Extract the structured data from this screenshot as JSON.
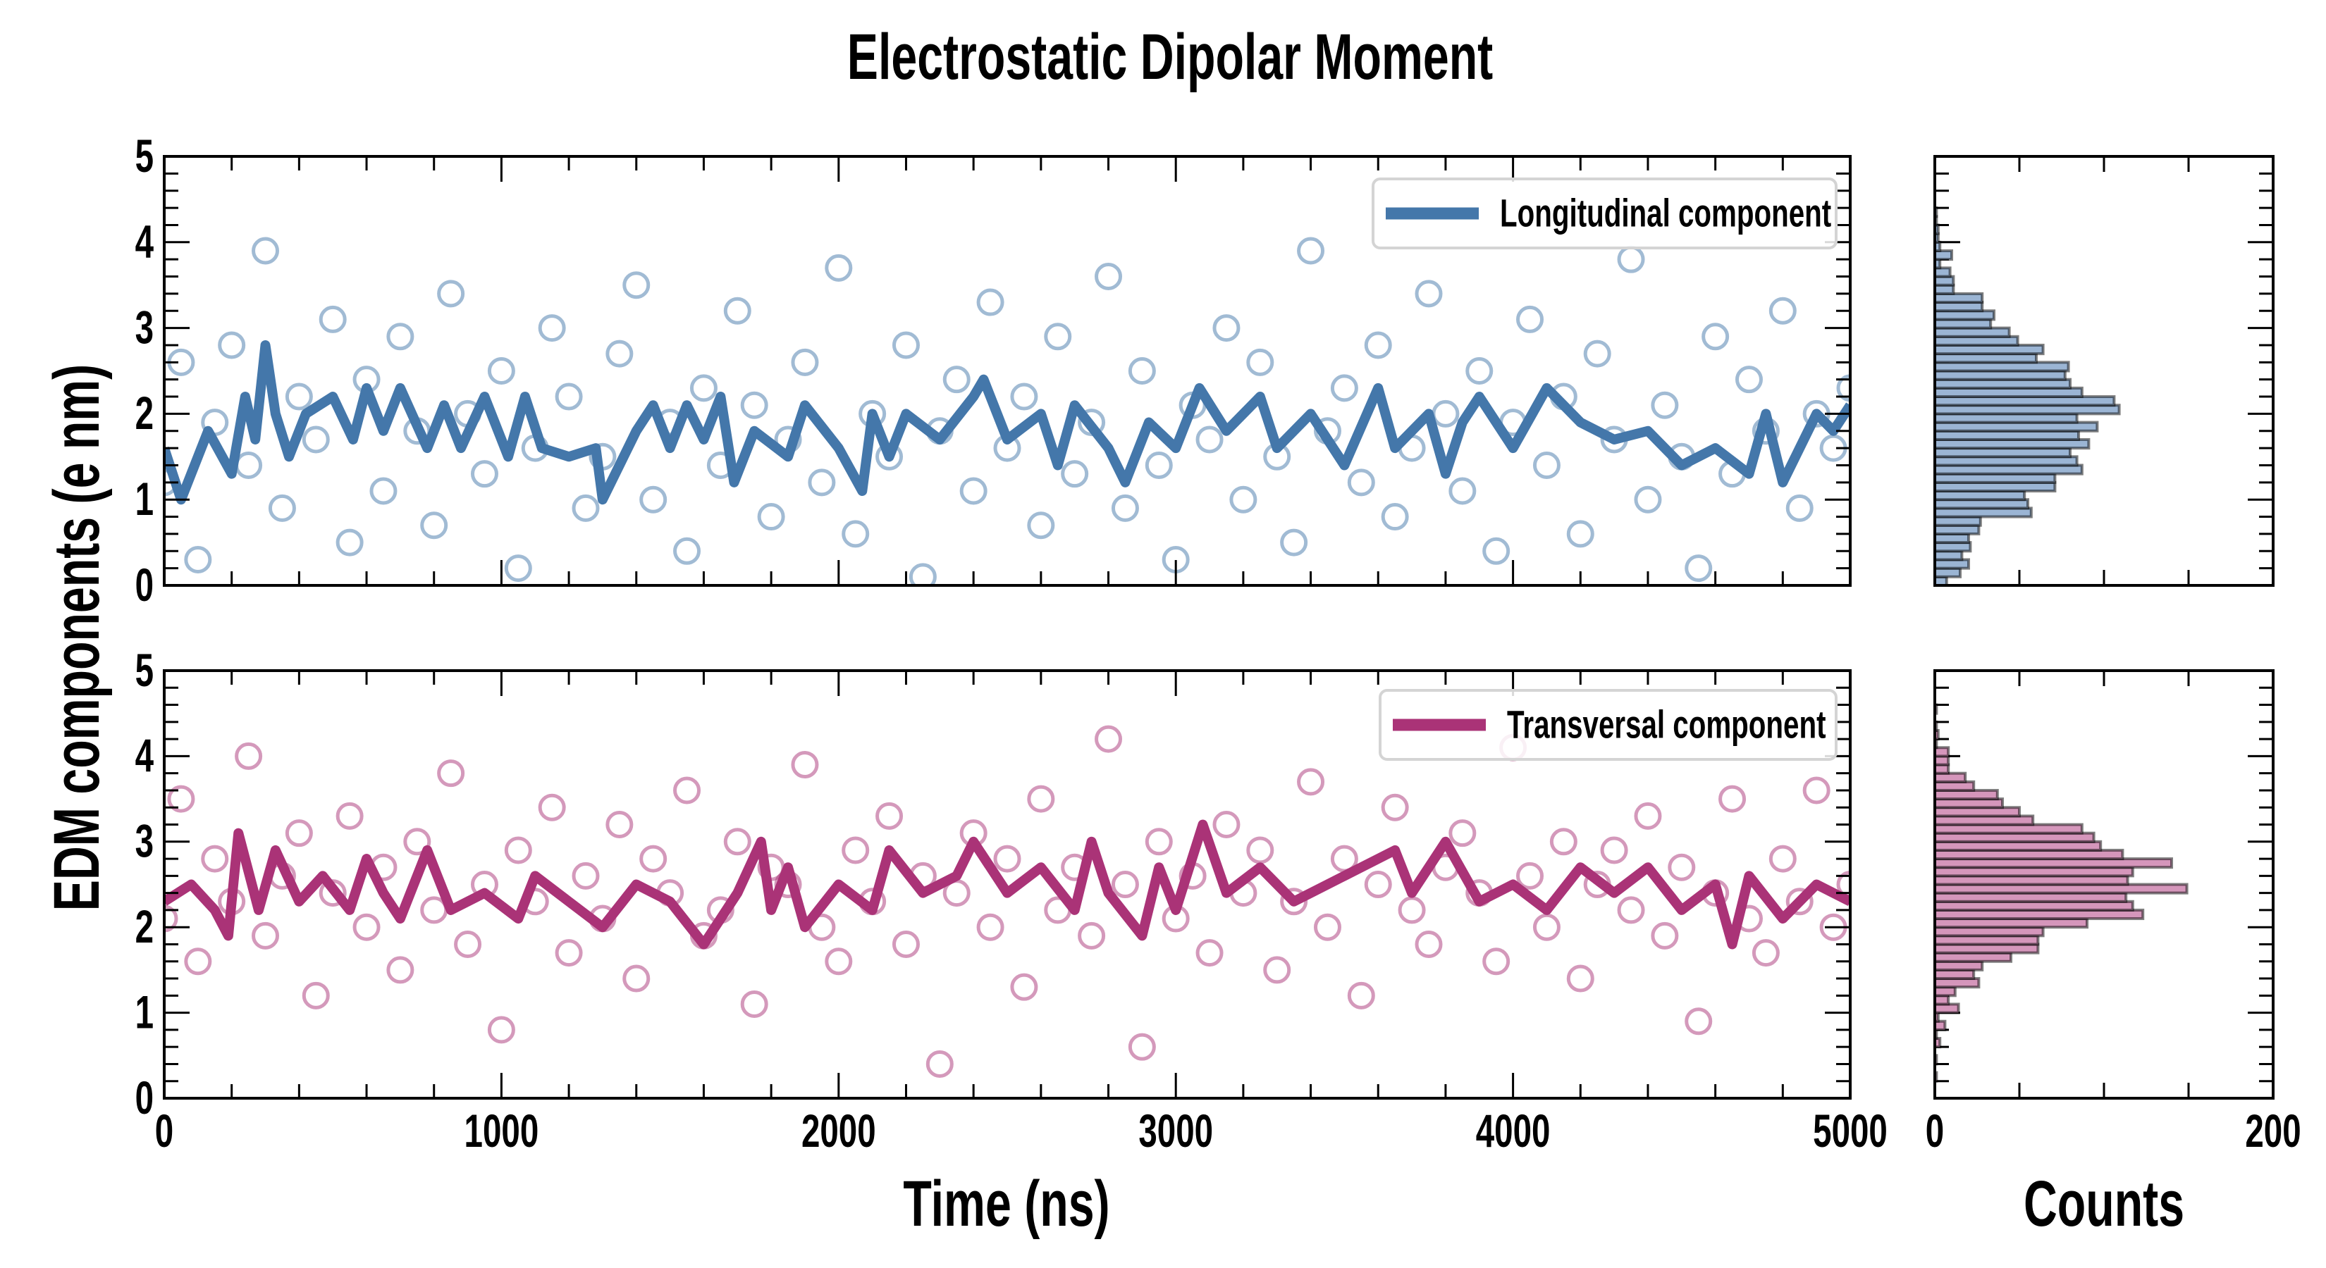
{
  "chart_data": {
    "type": "scatter",
    "title": "Electrostatic Dipolar Moment",
    "ylabel": "EDM components (e nm)",
    "xlabel": "Time (ns)",
    "hist_xlabel": "Counts",
    "xlim": [
      0,
      5000
    ],
    "ylim": [
      0,
      5
    ],
    "x_ticks": [
      "0",
      "1000",
      "2000",
      "3000",
      "4000",
      "5000"
    ],
    "y_ticks": [
      "0",
      "1",
      "2",
      "3",
      "4",
      "5"
    ],
    "hist_xlim": [
      0,
      200
    ],
    "hist_x_ticks": [
      "0",
      "200"
    ],
    "hist_bin_width": 0.1,
    "panels": [
      {
        "name": "Longitudinal component",
        "legend_label": "Longitudinal component",
        "legend_position": "top-right",
        "color": "#4477aa",
        "hist_fill": "#9bb5d4",
        "scatter_x_start": 0,
        "scatter_x_step": 50,
        "scatter_y": [
          1.2,
          2.6,
          0.3,
          1.9,
          2.8,
          1.4,
          3.9,
          0.9,
          2.2,
          1.7,
          3.1,
          0.5,
          2.4,
          1.1,
          2.9,
          1.8,
          0.7,
          3.4,
          2.0,
          1.3,
          2.5,
          0.2,
          1.6,
          3.0,
          2.2,
          0.9,
          1.5,
          2.7,
          3.5,
          1.0,
          1.9,
          0.4,
          2.3,
          1.4,
          3.2,
          2.1,
          0.8,
          1.7,
          2.6,
          1.2,
          3.7,
          0.6,
          2.0,
          1.5,
          2.8,
          0.1,
          1.8,
          2.4,
          1.1,
          3.3,
          1.6,
          2.2,
          0.7,
          2.9,
          1.3,
          1.9,
          3.6,
          0.9,
          2.5,
          1.4,
          0.3,
          2.1,
          1.7,
          3.0,
          1.0,
          2.6,
          1.5,
          0.5,
          3.9,
          1.8,
          2.3,
          1.2,
          2.8,
          0.8,
          1.6,
          3.4,
          2.0,
          1.1,
          2.5,
          0.4,
          1.9,
          3.1,
          1.4,
          2.2,
          0.6,
          2.7,
          1.7,
          3.8,
          1.0,
          2.1,
          1.5,
          0.2,
          2.9,
          1.3,
          2.4,
          1.8,
          3.2,
          0.9,
          2.0,
          1.6,
          2.3
        ],
        "running_average": [
          [
            0,
            1.6
          ],
          [
            50,
            1.0
          ],
          [
            130,
            1.8
          ],
          [
            200,
            1.3
          ],
          [
            240,
            2.2
          ],
          [
            270,
            1.7
          ],
          [
            300,
            2.8
          ],
          [
            330,
            2.0
          ],
          [
            370,
            1.5
          ],
          [
            420,
            2.0
          ],
          [
            500,
            2.2
          ],
          [
            560,
            1.7
          ],
          [
            600,
            2.3
          ],
          [
            650,
            1.8
          ],
          [
            700,
            2.3
          ],
          [
            780,
            1.6
          ],
          [
            830,
            2.1
          ],
          [
            880,
            1.6
          ],
          [
            950,
            2.2
          ],
          [
            1020,
            1.5
          ],
          [
            1070,
            2.2
          ],
          [
            1120,
            1.6
          ],
          [
            1200,
            1.5
          ],
          [
            1280,
            1.6
          ],
          [
            1300,
            1.0
          ],
          [
            1400,
            1.8
          ],
          [
            1450,
            2.1
          ],
          [
            1500,
            1.6
          ],
          [
            1550,
            2.1
          ],
          [
            1600,
            1.7
          ],
          [
            1650,
            2.2
          ],
          [
            1690,
            1.2
          ],
          [
            1750,
            1.8
          ],
          [
            1850,
            1.5
          ],
          [
            1900,
            2.1
          ],
          [
            2000,
            1.6
          ],
          [
            2070,
            1.1
          ],
          [
            2100,
            2.0
          ],
          [
            2150,
            1.5
          ],
          [
            2200,
            2.0
          ],
          [
            2300,
            1.7
          ],
          [
            2400,
            2.2
          ],
          [
            2430,
            2.4
          ],
          [
            2500,
            1.7
          ],
          [
            2600,
            2.0
          ],
          [
            2650,
            1.4
          ],
          [
            2700,
            2.1
          ],
          [
            2800,
            1.6
          ],
          [
            2850,
            1.2
          ],
          [
            2920,
            1.9
          ],
          [
            3000,
            1.6
          ],
          [
            3070,
            2.3
          ],
          [
            3150,
            1.8
          ],
          [
            3250,
            2.2
          ],
          [
            3300,
            1.6
          ],
          [
            3400,
            2.0
          ],
          [
            3500,
            1.4
          ],
          [
            3600,
            2.3
          ],
          [
            3650,
            1.6
          ],
          [
            3750,
            2.0
          ],
          [
            3800,
            1.3
          ],
          [
            3850,
            1.9
          ],
          [
            3900,
            2.2
          ],
          [
            4000,
            1.6
          ],
          [
            4100,
            2.3
          ],
          [
            4200,
            1.9
          ],
          [
            4300,
            1.7
          ],
          [
            4400,
            1.8
          ],
          [
            4500,
            1.4
          ],
          [
            4600,
            1.6
          ],
          [
            4700,
            1.3
          ],
          [
            4750,
            2.0
          ],
          [
            4800,
            1.2
          ],
          [
            4900,
            2.0
          ],
          [
            4950,
            1.8
          ],
          [
            5000,
            2.1
          ]
        ],
        "hist_counts": [
          7,
          15,
          20,
          16,
          21,
          20,
          26,
          27,
          57,
          55,
          53,
          71,
          71,
          87,
          84,
          80,
          91,
          85,
          96,
          84,
          109,
          106,
          87,
          80,
          77,
          79,
          60,
          64,
          49,
          44,
          33,
          35,
          28,
          28,
          11,
          11,
          9,
          3,
          10,
          3,
          2,
          2,
          1,
          1,
          0,
          0,
          0,
          0,
          0,
          0
        ]
      },
      {
        "name": "Transversal component",
        "legend_label": "Transversal component",
        "legend_position": "top-right",
        "color": "#aa3377",
        "hist_fill": "#d596bb",
        "scatter_x_start": 0,
        "scatter_x_step": 50,
        "scatter_y": [
          2.1,
          3.5,
          1.6,
          2.8,
          2.3,
          4.0,
          1.9,
          2.6,
          3.1,
          1.2,
          2.4,
          3.3,
          2.0,
          2.7,
          1.5,
          3.0,
          2.2,
          3.8,
          1.8,
          2.5,
          0.8,
          2.9,
          2.3,
          3.4,
          1.7,
          2.6,
          2.1,
          3.2,
          1.4,
          2.8,
          2.4,
          3.6,
          1.9,
          2.2,
          3.0,
          1.1,
          2.7,
          2.5,
          3.9,
          2.0,
          1.6,
          2.9,
          2.3,
          3.3,
          1.8,
          2.6,
          0.4,
          2.4,
          3.1,
          2.0,
          2.8,
          1.3,
          3.5,
          2.2,
          2.7,
          1.9,
          4.2,
          2.5,
          0.6,
          3.0,
          2.1,
          2.6,
          1.7,
          3.2,
          2.4,
          2.9,
          1.5,
          2.3,
          3.7,
          2.0,
          2.8,
          1.2,
          2.5,
          3.4,
          2.2,
          1.8,
          2.7,
          3.1,
          2.4,
          1.6,
          4.1,
          2.6,
          2.0,
          3.0,
          1.4,
          2.5,
          2.9,
          2.2,
          3.3,
          1.9,
          2.7,
          0.9,
          2.4,
          3.5,
          2.1,
          1.7,
          2.8,
          2.3,
          3.6,
          2.0,
          2.5
        ],
        "running_average": [
          [
            0,
            2.3
          ],
          [
            80,
            2.5
          ],
          [
            150,
            2.2
          ],
          [
            190,
            1.9
          ],
          [
            220,
            3.1
          ],
          [
            280,
            2.2
          ],
          [
            330,
            2.9
          ],
          [
            400,
            2.3
          ],
          [
            470,
            2.6
          ],
          [
            550,
            2.2
          ],
          [
            600,
            2.8
          ],
          [
            650,
            2.4
          ],
          [
            700,
            2.1
          ],
          [
            780,
            2.9
          ],
          [
            850,
            2.2
          ],
          [
            950,
            2.4
          ],
          [
            1050,
            2.1
          ],
          [
            1100,
            2.6
          ],
          [
            1200,
            2.3
          ],
          [
            1300,
            2.0
          ],
          [
            1400,
            2.5
          ],
          [
            1500,
            2.3
          ],
          [
            1600,
            1.8
          ],
          [
            1700,
            2.4
          ],
          [
            1770,
            3.0
          ],
          [
            1800,
            2.2
          ],
          [
            1850,
            2.7
          ],
          [
            1900,
            2.0
          ],
          [
            2000,
            2.5
          ],
          [
            2100,
            2.2
          ],
          [
            2150,
            2.9
          ],
          [
            2250,
            2.4
          ],
          [
            2350,
            2.6
          ],
          [
            2400,
            3.0
          ],
          [
            2500,
            2.4
          ],
          [
            2600,
            2.7
          ],
          [
            2700,
            2.2
          ],
          [
            2750,
            3.0
          ],
          [
            2800,
            2.4
          ],
          [
            2900,
            1.9
          ],
          [
            2950,
            2.7
          ],
          [
            3000,
            2.2
          ],
          [
            3080,
            3.2
          ],
          [
            3150,
            2.4
          ],
          [
            3250,
            2.7
          ],
          [
            3350,
            2.3
          ],
          [
            3500,
            2.6
          ],
          [
            3650,
            2.9
          ],
          [
            3700,
            2.4
          ],
          [
            3800,
            3.0
          ],
          [
            3900,
            2.3
          ],
          [
            4000,
            2.5
          ],
          [
            4100,
            2.2
          ],
          [
            4200,
            2.7
          ],
          [
            4300,
            2.4
          ],
          [
            4400,
            2.7
          ],
          [
            4500,
            2.2
          ],
          [
            4600,
            2.5
          ],
          [
            4650,
            1.8
          ],
          [
            4700,
            2.6
          ],
          [
            4800,
            2.1
          ],
          [
            4900,
            2.5
          ],
          [
            5000,
            2.3
          ]
        ],
        "hist_counts": [
          0,
          0,
          1,
          0,
          1,
          0,
          3,
          1,
          6,
          2,
          14,
          8,
          12,
          26,
          23,
          28,
          45,
          61,
          61,
          64,
          90,
          123,
          117,
          113,
          149,
          114,
          117,
          140,
          111,
          98,
          94,
          87,
          58,
          50,
          40,
          37,
          23,
          18,
          8,
          8,
          8,
          1,
          2,
          1,
          0,
          1,
          0,
          0,
          0,
          0
        ]
      }
    ]
  }
}
